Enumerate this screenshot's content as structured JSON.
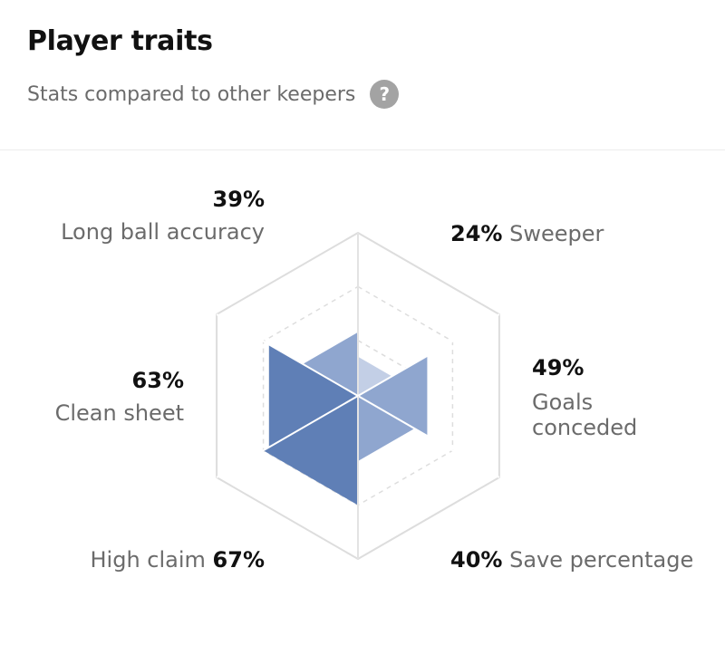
{
  "header": {
    "title": "Player traits",
    "subtitle": "Stats compared to other keepers",
    "help_icon": "question-mark-icon"
  },
  "colors": {
    "fill_primary": "#5f7fb6",
    "fill_light": "#8fa6cf",
    "fill_lightest": "#c3cfe6",
    "grid": "#dddddd",
    "label": "#6b6b6b",
    "value": "#111111"
  },
  "chart_data": {
    "type": "radar",
    "max": 100,
    "axes": [
      {
        "key": "sweeper",
        "label": "Sweeper",
        "value": 24,
        "display": "24%"
      },
      {
        "key": "goals_conceded",
        "label_line1": "Goals",
        "label_line2": "conceded",
        "value": 49,
        "display": "49%"
      },
      {
        "key": "save_percentage",
        "label": "Save percentage",
        "value": 40,
        "display": "40%"
      },
      {
        "key": "high_claim",
        "label": "High claim",
        "value": 67,
        "display": "67%"
      },
      {
        "key": "clean_sheet",
        "label": "Clean sheet",
        "value": 63,
        "display": "63%"
      },
      {
        "key": "long_ball_accuracy",
        "label": "Long ball accuracy",
        "value": 39,
        "display": "39%"
      }
    ]
  }
}
